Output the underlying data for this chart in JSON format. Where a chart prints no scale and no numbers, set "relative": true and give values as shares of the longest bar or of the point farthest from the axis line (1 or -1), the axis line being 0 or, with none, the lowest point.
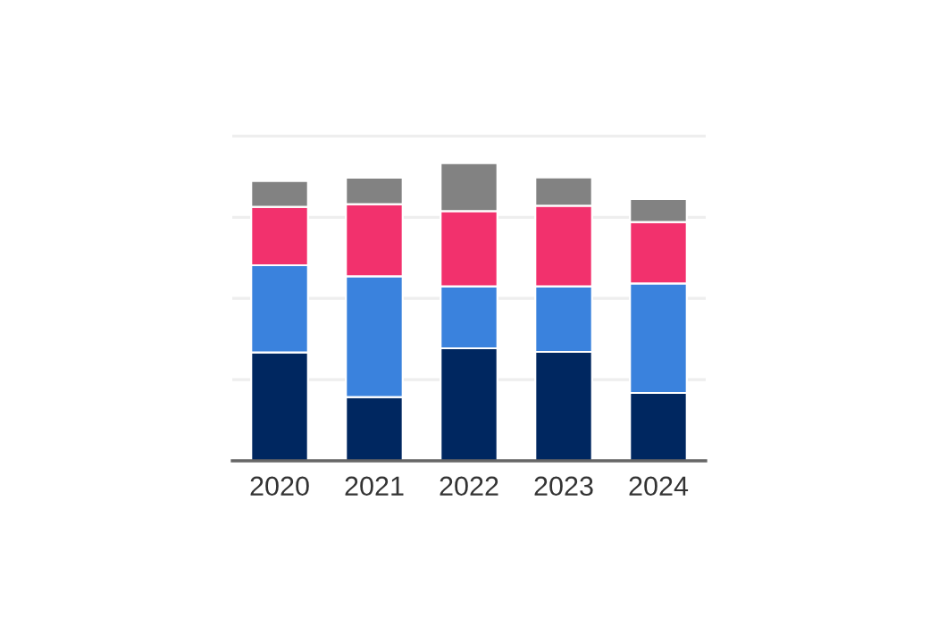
{
  "chart_data": {
    "type": "bar",
    "stacked": true,
    "relative": true,
    "grid": "y",
    "legend": false,
    "categories": [
      "2020",
      "2021",
      "2022",
      "2023",
      "2024"
    ],
    "series": [
      {
        "color": "#002760",
        "values": [
          0.364,
          0.214,
          0.378,
          0.366,
          0.228
        ]
      },
      {
        "color": "#3a82dd",
        "values": [
          0.293,
          0.406,
          0.208,
          0.22,
          0.368
        ]
      },
      {
        "color": "#f2316d",
        "values": [
          0.196,
          0.242,
          0.253,
          0.271,
          0.206
        ]
      },
      {
        "color": "#828282",
        "values": [
          0.087,
          0.089,
          0.161,
          0.095,
          0.077
        ]
      }
    ]
  }
}
